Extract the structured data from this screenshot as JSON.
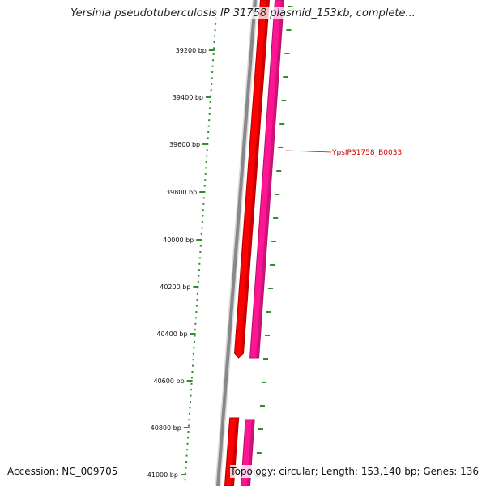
{
  "title": "Yersinia pseudotuberculosis IP 31758 plasmid_153kb, complete...",
  "accession": "Accession: NC_009705",
  "summary": "Topology: circular; Length: 153,140 bp; Genes: 136",
  "ruler": {
    "unit": "bp",
    "labels": [
      "39200 bp",
      "39400 bp",
      "39600 bp",
      "39800 bp",
      "40000 bp",
      "40200 bp",
      "40400 bp",
      "40600 bp",
      "40800 bp",
      "41000 bp"
    ]
  },
  "genes": [
    {
      "label": "YpsIP31758_B0033",
      "color": "#cc0000",
      "strand": "forward"
    }
  ],
  "tracks": {
    "backbone_color": "#888888",
    "forward_color": "#ff0000",
    "forward_dark": "#b30000",
    "reverse_color": "#ff1493",
    "reverse_dark": "#b0106a",
    "tick_color": "#2e8b2e"
  }
}
